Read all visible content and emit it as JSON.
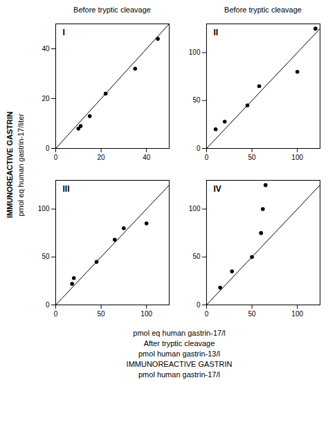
{
  "chart_data": [
    {
      "type": "scatter",
      "title": "Before tryptic cleavage",
      "annotations": [
        "I"
      ],
      "xlim": [
        0,
        50
      ],
      "ylim": [
        0,
        50
      ],
      "xticks": [
        0,
        20,
        40
      ],
      "yticks": [
        0,
        20,
        40
      ],
      "series": [
        {
          "type": "line",
          "x": [
            0,
            50
          ],
          "values": [
            0,
            50
          ],
          "color": "#000000"
        },
        {
          "type": "scatter",
          "x": [
            10,
            11,
            15,
            22,
            35,
            45
          ],
          "values": [
            8,
            9,
            13,
            22,
            32,
            44
          ],
          "color": "#000000"
        }
      ]
    },
    {
      "type": "scatter",
      "title": "Before tryptic cleavage",
      "annotations": [
        "II"
      ],
      "xlim": [
        0,
        125
      ],
      "ylim": [
        0,
        130
      ],
      "xticks": [
        0,
        50,
        100
      ],
      "yticks": [
        0,
        50,
        100
      ],
      "series": [
        {
          "type": "line",
          "x": [
            0,
            125
          ],
          "values": [
            0,
            125
          ],
          "color": "#000000"
        },
        {
          "type": "scatter",
          "x": [
            10,
            20,
            45,
            58,
            100,
            120
          ],
          "values": [
            20,
            28,
            45,
            65,
            80,
            125
          ],
          "color": "#000000"
        }
      ]
    },
    {
      "type": "scatter",
      "annotations": [
        "III"
      ],
      "xlim": [
        0,
        125
      ],
      "ylim": [
        0,
        130
      ],
      "xticks": [
        0,
        50,
        100
      ],
      "yticks": [
        0,
        50,
        100
      ],
      "series": [
        {
          "type": "line",
          "x": [
            0,
            125
          ],
          "values": [
            0,
            125
          ],
          "color": "#000000"
        },
        {
          "type": "scatter",
          "x": [
            18,
            20,
            45,
            65,
            75,
            100
          ],
          "values": [
            22,
            28,
            45,
            68,
            80,
            85
          ],
          "color": "#000000"
        }
      ]
    },
    {
      "type": "scatter",
      "annotations": [
        "IV"
      ],
      "xlim": [
        0,
        125
      ],
      "ylim": [
        0,
        130
      ],
      "xticks": [
        0,
        50,
        100
      ],
      "yticks": [
        0,
        50,
        100
      ],
      "series": [
        {
          "type": "line",
          "x": [
            0,
            125
          ],
          "values": [
            0,
            125
          ],
          "color": "#000000"
        },
        {
          "type": "scatter",
          "x": [
            15,
            28,
            50,
            60,
            62,
            65
          ],
          "values": [
            18,
            35,
            50,
            75,
            100,
            125
          ],
          "color": "#000000"
        }
      ]
    }
  ],
  "ylabel": [
    "IMMUNOREACTIVE GASTRIN",
    "pmol eq  human gastrin-17/liter"
  ],
  "xlabel": [
    "pmol eq  human gastrin-17/l",
    "After tryptic cleavage",
    "pmol human gastrin-13/l",
    "IMMUNOREACTIVE GASTRIN",
    "pmol human gastrin-17/l"
  ]
}
